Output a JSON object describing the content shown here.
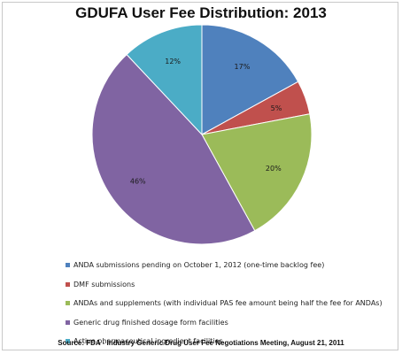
{
  "chart_data": {
    "type": "pie",
    "title": "GDUFA User Fee Distribution: 2013",
    "categories": [
      "ANDA submissions pending on October 1, 2012 (one-time backlog fee)",
      "DMF submissions",
      "ANDAs and supplements (with individual PAS fee amount being half the fee for ANDAs)",
      "Generic drug finished dosage form facilities",
      "Active pharmaceutical ingredient facilities"
    ],
    "values": [
      17,
      5,
      20,
      46,
      12
    ],
    "data_labels": [
      "17%",
      "5%",
      "20%",
      "46%",
      "12%"
    ],
    "colors": [
      "#4f81bd",
      "#c0504d",
      "#9bbb59",
      "#8064a2",
      "#4bacc6"
    ],
    "legend_position": "bottom",
    "source": "Source: FDA - Industry Generic Drug User Fee Negotiations Meeting, August 21, 2011"
  }
}
